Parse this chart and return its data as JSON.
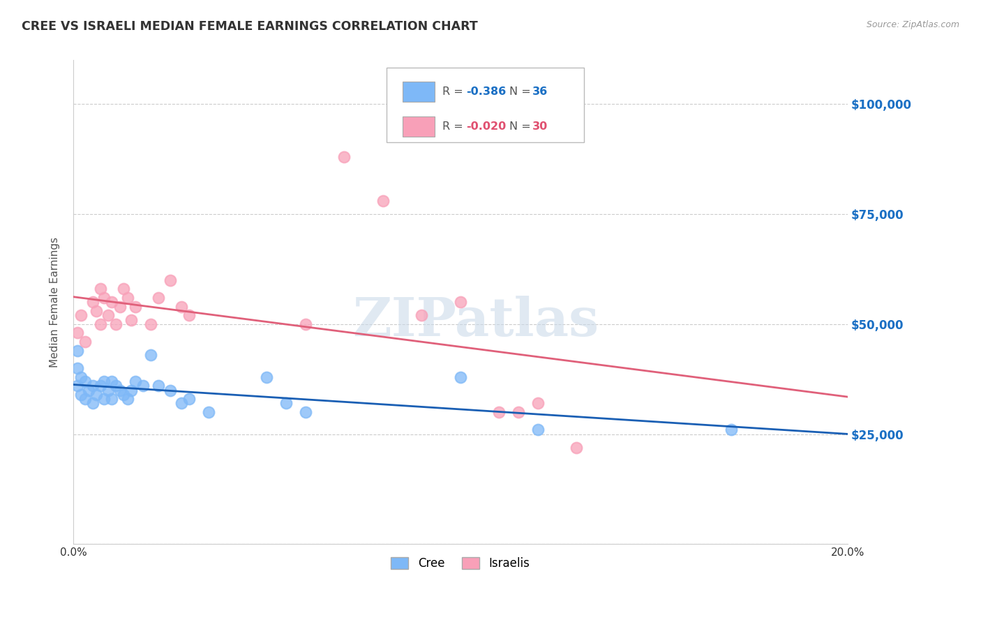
{
  "title": "CREE VS ISRAELI MEDIAN FEMALE EARNINGS CORRELATION CHART",
  "source": "Source: ZipAtlas.com",
  "ylabel": "Median Female Earnings",
  "xlim": [
    0.0,
    0.2
  ],
  "ylim": [
    0,
    110000
  ],
  "yticks": [
    0,
    25000,
    50000,
    75000,
    100000
  ],
  "ytick_labels": [
    "",
    "$25,000",
    "$50,000",
    "$75,000",
    "$100,000"
  ],
  "xticks": [
    0.0,
    0.04,
    0.08,
    0.12,
    0.16,
    0.2
  ],
  "xtick_labels": [
    "0.0%",
    "",
    "",
    "",
    "",
    "20.0%"
  ],
  "background_color": "#ffffff",
  "grid_color": "#cccccc",
  "watermark": "ZIPatlas",
  "cree_color": "#7eb8f7",
  "israeli_color": "#f8a0b8",
  "cree_line_color": "#1a5fb4",
  "israeli_line_color": "#e0607a",
  "cree_x": [
    0.001,
    0.001,
    0.001,
    0.002,
    0.002,
    0.003,
    0.003,
    0.004,
    0.005,
    0.005,
    0.006,
    0.007,
    0.008,
    0.008,
    0.009,
    0.01,
    0.01,
    0.011,
    0.012,
    0.013,
    0.014,
    0.015,
    0.016,
    0.018,
    0.02,
    0.022,
    0.025,
    0.028,
    0.03,
    0.035,
    0.05,
    0.055,
    0.06,
    0.1,
    0.12,
    0.17
  ],
  "cree_y": [
    44000,
    40000,
    36000,
    38000,
    34000,
    37000,
    33000,
    35000,
    36000,
    32000,
    34000,
    36000,
    37000,
    33000,
    35000,
    37000,
    33000,
    36000,
    35000,
    34000,
    33000,
    35000,
    37000,
    36000,
    43000,
    36000,
    35000,
    32000,
    33000,
    30000,
    38000,
    32000,
    30000,
    38000,
    26000,
    26000
  ],
  "israeli_x": [
    0.001,
    0.002,
    0.003,
    0.005,
    0.006,
    0.007,
    0.007,
    0.008,
    0.009,
    0.01,
    0.011,
    0.012,
    0.013,
    0.014,
    0.015,
    0.016,
    0.02,
    0.022,
    0.025,
    0.028,
    0.03,
    0.06,
    0.07,
    0.08,
    0.09,
    0.1,
    0.11,
    0.115,
    0.12,
    0.13
  ],
  "israeli_y": [
    48000,
    52000,
    46000,
    55000,
    53000,
    58000,
    50000,
    56000,
    52000,
    55000,
    50000,
    54000,
    58000,
    56000,
    51000,
    54000,
    50000,
    56000,
    60000,
    54000,
    52000,
    50000,
    88000,
    78000,
    52000,
    55000,
    30000,
    30000,
    32000,
    22000
  ]
}
